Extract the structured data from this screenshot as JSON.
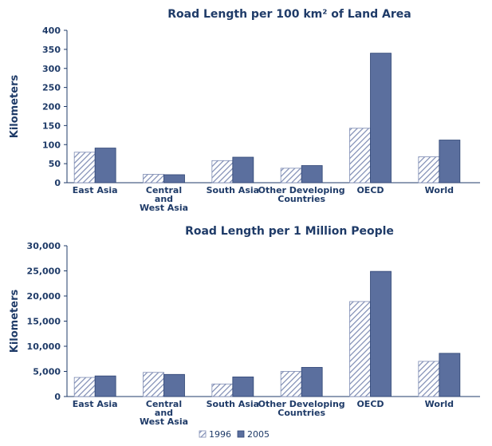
{
  "colors": {
    "text": "#1f3b68",
    "axis": "#1f3b68",
    "bar_2005": "#5b6f9e",
    "bar_1996_stripe": "#7d8bb3",
    "bar_1996_bg": "#ffffff"
  },
  "legend": {
    "items": [
      "1996",
      "2005"
    ]
  },
  "chart_data": [
    {
      "type": "bar",
      "title": "Road Length per 100 km² of Land Area",
      "ylabel": "Kilometers",
      "xlabel": "",
      "categories": [
        [
          "East Asia"
        ],
        [
          "Central",
          "and",
          "West Asia"
        ],
        [
          "South Asia"
        ],
        [
          "Other Developing",
          "Countries"
        ],
        [
          "OECD"
        ],
        [
          "World"
        ]
      ],
      "series": [
        {
          "name": "1996",
          "values": [
            80,
            22,
            58,
            38,
            143,
            68
          ]
        },
        {
          "name": "2005",
          "values": [
            91,
            21,
            67,
            45,
            340,
            112
          ]
        }
      ],
      "ylim": [
        0,
        400
      ],
      "yticks": [
        0,
        50,
        100,
        150,
        200,
        250,
        300,
        350,
        400
      ],
      "ytick_labels": [
        "0",
        "50",
        "100",
        "150",
        "200",
        "250",
        "300",
        "350",
        "400"
      ],
      "grid": false
    },
    {
      "type": "bar",
      "title": "Road Length per 1 Million People",
      "ylabel": "Kilometers",
      "xlabel": "",
      "categories": [
        [
          "East Asia"
        ],
        [
          "Central",
          "and",
          "West Asia"
        ],
        [
          "South Asia"
        ],
        [
          "Other Developing",
          "Countries"
        ],
        [
          "OECD"
        ],
        [
          "World"
        ]
      ],
      "series": [
        {
          "name": "1996",
          "values": [
            3800,
            4800,
            2500,
            5000,
            18900,
            7000
          ]
        },
        {
          "name": "2005",
          "values": [
            4100,
            4400,
            3900,
            5800,
            24900,
            8600
          ]
        }
      ],
      "ylim": [
        0,
        30000
      ],
      "yticks": [
        0,
        5000,
        10000,
        15000,
        20000,
        25000,
        30000
      ],
      "ytick_labels": [
        "0",
        "5,000",
        "10,000",
        "15,000",
        "20,000",
        "25,000",
        "30,000"
      ],
      "grid": false
    }
  ]
}
